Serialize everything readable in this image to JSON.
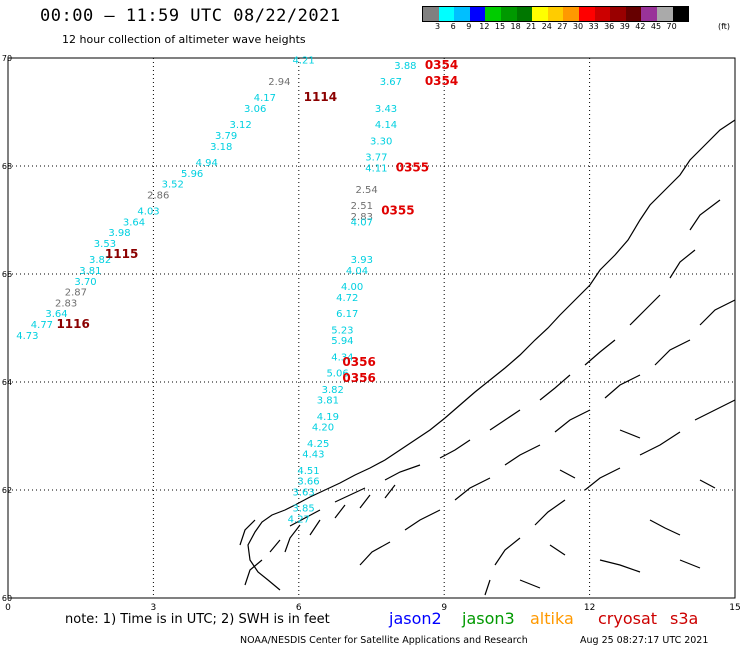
{
  "header": {
    "title": "00:00 – 11:59 UTC 08/22/2021",
    "subtitle": "12 hour collection of altimeter wave heights"
  },
  "colorbar": {
    "colors": [
      "#808080",
      "#00ffff",
      "#00bfff",
      "#0000ff",
      "#00cc00",
      "#009900",
      "#007700",
      "#ffff00",
      "#ffcc00",
      "#ff9900",
      "#ff0000",
      "#cc0000",
      "#990000",
      "#660000",
      "#993399",
      "#aaaaaa",
      "#000000"
    ],
    "labels": [
      "3",
      "6",
      "9",
      "12",
      "15",
      "18",
      "21",
      "24",
      "27",
      "30",
      "33",
      "36",
      "39",
      "42",
      "45",
      "70"
    ],
    "unit": "(ft)"
  },
  "axes": {
    "x_ticks": [
      "0",
      "3",
      "6",
      "9",
      "12",
      "15"
    ],
    "y_ticks": [
      "70",
      "68",
      "66",
      "64",
      "62",
      "60"
    ]
  },
  "chart_data": {
    "type": "scatter",
    "title": "12 hour collection of altimeter wave heights",
    "xlim": [
      0,
      15
    ],
    "ylim": [
      60,
      70
    ],
    "passes": [
      {
        "satellite": "cryosat",
        "label": "1114",
        "pos": [
          6.1,
          69.2
        ]
      },
      {
        "satellite": "cryosat",
        "label": "1115",
        "pos": [
          2.0,
          66.3
        ]
      },
      {
        "satellite": "cryosat",
        "label": "1116",
        "pos": [
          1.0,
          65.0
        ]
      },
      {
        "satellite": "s3a",
        "label": "0354",
        "pos": [
          8.6,
          69.8
        ]
      },
      {
        "satellite": "s3a",
        "label": "0354",
        "pos": [
          8.6,
          69.5
        ]
      },
      {
        "satellite": "s3a",
        "label": "0355",
        "pos": [
          8.0,
          67.9
        ]
      },
      {
        "satellite": "s3a",
        "label": "0355",
        "pos": [
          7.7,
          67.1
        ]
      },
      {
        "satellite": "s3a",
        "label": "0356",
        "pos": [
          6.9,
          64.3
        ]
      },
      {
        "satellite": "s3a",
        "label": "0356",
        "pos": [
          6.9,
          64.0
        ]
      }
    ],
    "points": [
      {
        "lon": 6.1,
        "lat": 69.9,
        "swh": 4.21,
        "color": "cyan"
      },
      {
        "lon": 5.6,
        "lat": 69.5,
        "swh": 2.94,
        "color": "gray"
      },
      {
        "lon": 5.3,
        "lat": 69.2,
        "swh": 4.17,
        "color": "cyan"
      },
      {
        "lon": 5.1,
        "lat": 69.0,
        "swh": 3.06,
        "color": "cyan"
      },
      {
        "lon": 4.8,
        "lat": 68.7,
        "swh": 3.12,
        "color": "cyan"
      },
      {
        "lon": 4.5,
        "lat": 68.5,
        "swh": 3.79,
        "color": "cyan"
      },
      {
        "lon": 4.4,
        "lat": 68.3,
        "swh": 3.18,
        "color": "cyan"
      },
      {
        "lon": 4.1,
        "lat": 68.0,
        "swh": 4.94,
        "color": "cyan"
      },
      {
        "lon": 3.8,
        "lat": 67.8,
        "swh": 5.96,
        "color": "cyan"
      },
      {
        "lon": 3.4,
        "lat": 67.6,
        "swh": 3.52,
        "color": "cyan"
      },
      {
        "lon": 3.1,
        "lat": 67.4,
        "swh": 2.86,
        "color": "gray"
      },
      {
        "lon": 2.9,
        "lat": 67.1,
        "swh": 4.03,
        "color": "cyan"
      },
      {
        "lon": 2.6,
        "lat": 66.9,
        "swh": 3.64,
        "color": "cyan"
      },
      {
        "lon": 2.3,
        "lat": 66.7,
        "swh": 3.98,
        "color": "cyan"
      },
      {
        "lon": 2.0,
        "lat": 66.5,
        "swh": 3.53,
        "color": "cyan"
      },
      {
        "lon": 1.9,
        "lat": 66.2,
        "swh": 3.82,
        "color": "cyan"
      },
      {
        "lon": 1.7,
        "lat": 66.0,
        "swh": 3.81,
        "color": "cyan"
      },
      {
        "lon": 1.6,
        "lat": 65.8,
        "swh": 3.7,
        "color": "cyan"
      },
      {
        "lon": 1.4,
        "lat": 65.6,
        "swh": 2.87,
        "color": "gray"
      },
      {
        "lon": 1.2,
        "lat": 65.4,
        "swh": 2.83,
        "color": "gray"
      },
      {
        "lon": 1.0,
        "lat": 65.2,
        "swh": 3.64,
        "color": "cyan"
      },
      {
        "lon": 0.7,
        "lat": 65.0,
        "swh": 4.77,
        "color": "cyan"
      },
      {
        "lon": 0.4,
        "lat": 64.8,
        "swh": 4.73,
        "color": "cyan"
      },
      {
        "lon": 8.2,
        "lat": 69.8,
        "swh": 3.88,
        "color": "cyan"
      },
      {
        "lon": 7.9,
        "lat": 69.5,
        "swh": 3.67,
        "color": "cyan"
      },
      {
        "lon": 7.8,
        "lat": 69.0,
        "swh": 3.43,
        "color": "cyan"
      },
      {
        "lon": 7.8,
        "lat": 68.7,
        "swh": 4.14,
        "color": "cyan"
      },
      {
        "lon": 7.7,
        "lat": 68.4,
        "swh": 3.3,
        "color": "cyan"
      },
      {
        "lon": 7.6,
        "lat": 68.1,
        "swh": 3.77,
        "color": "cyan"
      },
      {
        "lon": 7.6,
        "lat": 67.9,
        "swh": 4.11,
        "color": "cyan"
      },
      {
        "lon": 7.4,
        "lat": 67.5,
        "swh": 2.54,
        "color": "gray"
      },
      {
        "lon": 7.3,
        "lat": 67.2,
        "swh": 2.51,
        "color": "gray"
      },
      {
        "lon": 7.3,
        "lat": 67.0,
        "swh": 2.83,
        "color": "gray"
      },
      {
        "lon": 7.3,
        "lat": 66.9,
        "swh": 4.07,
        "color": "cyan"
      },
      {
        "lon": 7.3,
        "lat": 66.2,
        "swh": 3.93,
        "color": "cyan"
      },
      {
        "lon": 7.2,
        "lat": 66.0,
        "swh": 4.04,
        "color": "cyan"
      },
      {
        "lon": 7.1,
        "lat": 65.7,
        "swh": 4.0,
        "color": "cyan"
      },
      {
        "lon": 7.0,
        "lat": 65.5,
        "swh": 4.72,
        "color": "cyan"
      },
      {
        "lon": 7.0,
        "lat": 65.2,
        "swh": 6.17,
        "color": "cyan"
      },
      {
        "lon": 6.9,
        "lat": 64.9,
        "swh": 5.23,
        "color": "cyan"
      },
      {
        "lon": 6.9,
        "lat": 64.7,
        "swh": 5.94,
        "color": "cyan"
      },
      {
        "lon": 6.9,
        "lat": 64.4,
        "swh": 4.34,
        "color": "cyan"
      },
      {
        "lon": 6.8,
        "lat": 64.1,
        "swh": 5.06,
        "color": "cyan"
      },
      {
        "lon": 6.7,
        "lat": 63.8,
        "swh": 3.82,
        "color": "cyan"
      },
      {
        "lon": 6.6,
        "lat": 63.6,
        "swh": 3.81,
        "color": "cyan"
      },
      {
        "lon": 6.6,
        "lat": 63.3,
        "swh": 4.19,
        "color": "cyan"
      },
      {
        "lon": 6.5,
        "lat": 63.1,
        "swh": 4.2,
        "color": "cyan"
      },
      {
        "lon": 6.4,
        "lat": 62.8,
        "swh": 4.25,
        "color": "cyan"
      },
      {
        "lon": 6.3,
        "lat": 62.6,
        "swh": 4.43,
        "color": "cyan"
      },
      {
        "lon": 6.2,
        "lat": 62.3,
        "swh": 4.51,
        "color": "cyan"
      },
      {
        "lon": 6.2,
        "lat": 62.1,
        "swh": 3.66,
        "color": "cyan"
      },
      {
        "lon": 6.1,
        "lat": 61.9,
        "swh": 3.63,
        "color": "cyan"
      },
      {
        "lon": 6.1,
        "lat": 61.6,
        "swh": 3.85,
        "color": "cyan"
      },
      {
        "lon": 6.0,
        "lat": 61.4,
        "swh": 4.27,
        "color": "cyan"
      }
    ]
  },
  "footer": {
    "note": "note: 1) Time is in UTC; 2) SWH is in feet",
    "satellites": [
      {
        "name": "jason2",
        "color": "#0000ff"
      },
      {
        "name": "jason3",
        "color": "#009900"
      },
      {
        "name": "altika",
        "color": "#ff9900"
      },
      {
        "name": "cryosat",
        "color": "#cc0000"
      },
      {
        "name": "s3a",
        "color": "#cc0000"
      }
    ],
    "credit": "NOAA/NESDIS Center for Satellite Applications and Research",
    "timestamp": "Aug 25 08:27:17 UTC 2021"
  }
}
